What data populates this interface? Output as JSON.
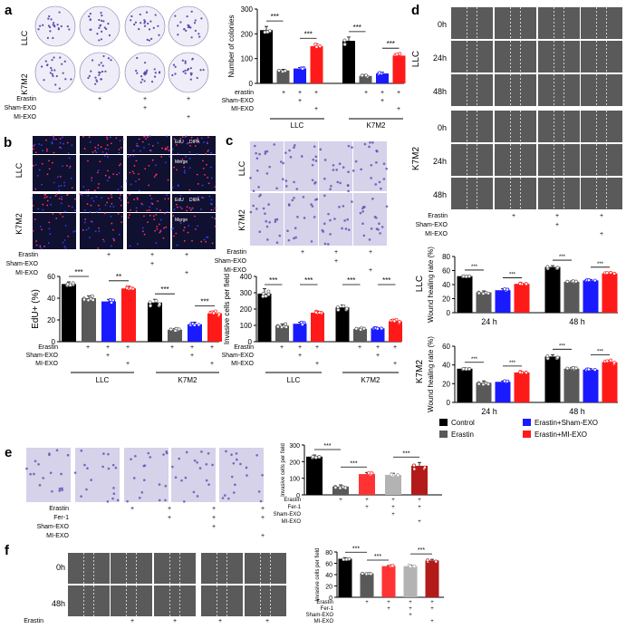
{
  "colors": {
    "control": "#000000",
    "erastin": "#595959",
    "sham": "#1a1aff",
    "mi": "#ff1a1a",
    "fer_sham": "#b3b3b3",
    "fer_mi": "#b31a1a",
    "fer": "#ff3333",
    "crystal_violet": "#5b4fb0",
    "fluor_bg": "#101030",
    "edu": "#ff3060",
    "dapi": "#3040ff",
    "micro": "#5a5a5a"
  },
  "panel_letters": {
    "a": "a",
    "b": "b",
    "c": "c",
    "d": "d",
    "e": "e",
    "f": "f"
  },
  "cell_lines": {
    "llc": "LLC",
    "k7m2": "K7M2"
  },
  "treatments": {
    "erastin": "Erastin",
    "sham": "Sham-EXO",
    "mi": "MI-EXO",
    "fer": "Fer-1",
    "erastin_lower": "erastin"
  },
  "symbols": {
    "plus": "+",
    "sig3": "***",
    "sig2": "**"
  },
  "image_labels": {
    "edu": "EdU",
    "dapi": "DIPA",
    "merge": "Merge",
    "t0": "0h",
    "t24": "24h",
    "t48": "48h"
  },
  "legend": {
    "control": "Control",
    "erastin": "Erastin",
    "sham": "Erastin+Sham-EXO",
    "mi": "Erastin+MI-EXO"
  },
  "chart_data": [
    {
      "panel": "a",
      "type": "bar",
      "ylabel": "Number of colonies",
      "ylim": [
        0,
        300
      ],
      "yticks": [
        0,
        100,
        200,
        300
      ],
      "groups": [
        "LLC",
        "K7M2"
      ],
      "values": [
        [
          215,
          52,
          60,
          150
        ],
        [
          172,
          30,
          40,
          112
        ]
      ],
      "errors": [
        [
          15,
          5,
          4,
          10
        ],
        [
          15,
          6,
          5,
          8
        ]
      ],
      "significance": [
        "***",
        "***",
        "***",
        "***"
      ]
    },
    {
      "panel": "b",
      "type": "bar",
      "ylabel": "EdU+ (%)",
      "ylim": [
        0,
        60
      ],
      "yticks": [
        0,
        20,
        40,
        60
      ],
      "groups": [
        "LLC",
        "K7M2"
      ],
      "values": [
        [
          53,
          40,
          37,
          49
        ],
        [
          36,
          11,
          16,
          26
        ]
      ],
      "errors": [
        [
          2,
          2,
          2,
          2
        ],
        [
          3,
          1,
          2,
          2
        ]
      ],
      "significance": [
        "***",
        "**",
        "***",
        "***"
      ]
    },
    {
      "panel": "c",
      "type": "bar",
      "ylabel": "Invasive cells per field",
      "ylim": [
        0,
        400
      ],
      "yticks": [
        0,
        100,
        200,
        300,
        400
      ],
      "groups": [
        "LLC",
        "K7M2"
      ],
      "values": [
        [
          295,
          98,
          110,
          178
        ],
        [
          210,
          78,
          82,
          125
        ]
      ],
      "errors": [
        [
          30,
          10,
          10,
          10
        ],
        [
          15,
          5,
          5,
          10
        ]
      ],
      "significance": [
        "***",
        "***",
        "***",
        "***"
      ]
    },
    {
      "panel": "d-LLC",
      "type": "bar",
      "ylabel": "Wound healing rate (%)",
      "ylim": [
        0,
        80
      ],
      "yticks": [
        0,
        20,
        40,
        60,
        80
      ],
      "groups": [
        "24 h",
        "48 h"
      ],
      "values": [
        [
          52,
          29,
          32,
          41
        ],
        [
          65,
          44,
          46,
          56
        ]
      ],
      "errors": [
        [
          1,
          2,
          2,
          1
        ],
        [
          2,
          1,
          1,
          1
        ]
      ],
      "significance": [
        "***",
        "***",
        "***",
        "***"
      ]
    },
    {
      "panel": "d-K7M2",
      "type": "bar",
      "ylabel": "Wound healing rate (%)",
      "ylim": [
        0,
        60
      ],
      "yticks": [
        0,
        20,
        40,
        60
      ],
      "groups": [
        "24 h",
        "48 h"
      ],
      "values": [
        [
          36,
          21,
          22,
          32
        ],
        [
          49,
          36,
          35,
          43
        ]
      ],
      "errors": [
        [
          1,
          2,
          1,
          1
        ],
        [
          2,
          1,
          1,
          2
        ]
      ],
      "significance": [
        "***",
        "***",
        "***",
        "***"
      ]
    },
    {
      "panel": "e",
      "type": "bar",
      "ylabel": "Invasive cells per field",
      "ylim": [
        0,
        300
      ],
      "yticks": [
        0,
        100,
        200,
        300
      ],
      "values": [
        230,
        50,
        125,
        120,
        175
      ],
      "errors": [
        10,
        10,
        10,
        10,
        20
      ],
      "significance": [
        "***",
        "***",
        "***"
      ]
    },
    {
      "panel": "f",
      "type": "bar",
      "ylabel": "Invasive cells per field",
      "ylim": [
        0,
        80
      ],
      "yticks": [
        0,
        20,
        40,
        60,
        80
      ],
      "values": [
        68,
        42,
        55,
        55,
        65
      ],
      "errors": [
        2,
        1,
        1,
        2,
        2
      ],
      "significance": [
        "***",
        "***",
        "***"
      ]
    }
  ]
}
